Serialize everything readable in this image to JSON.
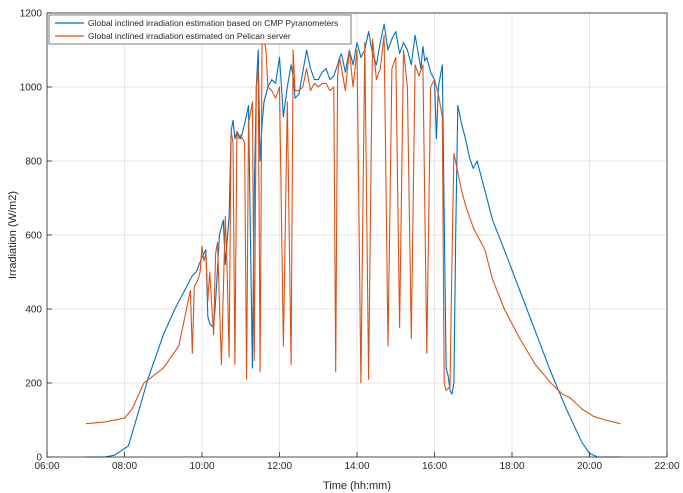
{
  "chart_data": {
    "type": "line",
    "xlabel": "Time (hh:mm)",
    "ylabel": "Irradiation (W/m2)",
    "xlim": [
      6,
      22
    ],
    "ylim": [
      0,
      1200
    ],
    "xticks": [
      6,
      8,
      10,
      12,
      14,
      16,
      18,
      20,
      22
    ],
    "xtick_labels": [
      "06:00",
      "08:00",
      "10:00",
      "12:00",
      "14:00",
      "16:00",
      "18:00",
      "20:00",
      "22:00"
    ],
    "yticks": [
      0,
      200,
      400,
      600,
      800,
      1000,
      1200
    ],
    "ytick_labels": [
      "0",
      "200",
      "400",
      "600",
      "800",
      "1000",
      "1200"
    ],
    "grid": true,
    "legend_position": "top-left",
    "series": [
      {
        "name": "Global inclined irradiation estimation based on CMP Pyranometers",
        "color": "#0072BD",
        "x": [
          7.0,
          7.5,
          7.75,
          8.1,
          8.3,
          8.6,
          9.0,
          9.3,
          9.6,
          9.75,
          9.85,
          10.0,
          10.1,
          10.15,
          10.2,
          10.3,
          10.35,
          10.45,
          10.55,
          10.6,
          10.7,
          10.75,
          10.8,
          10.85,
          10.9,
          10.95,
          11.0,
          11.1,
          11.2,
          11.3,
          11.35,
          11.4,
          11.45,
          11.5,
          11.55,
          11.6,
          11.7,
          11.8,
          11.9,
          12.0,
          12.1,
          12.2,
          12.3,
          12.35,
          12.4,
          12.5,
          12.6,
          12.7,
          12.8,
          12.9,
          13.0,
          13.1,
          13.2,
          13.3,
          13.4,
          13.5,
          13.55,
          13.6,
          13.7,
          13.8,
          13.9,
          14.0,
          14.1,
          14.2,
          14.3,
          14.4,
          14.5,
          14.6,
          14.7,
          14.8,
          14.9,
          15.0,
          15.1,
          15.2,
          15.3,
          15.4,
          15.5,
          15.6,
          15.65,
          15.7,
          15.75,
          15.8,
          15.9,
          16.0,
          16.05,
          16.1,
          16.2,
          16.3,
          16.35,
          16.4,
          16.45,
          16.5,
          16.55,
          16.6,
          16.7,
          16.8,
          16.9,
          17.0,
          17.1,
          17.3,
          17.5,
          17.8,
          18.2,
          18.6,
          19.0,
          19.4,
          19.8,
          20.0,
          20.2,
          20.4,
          20.8
        ],
        "y": [
          0,
          0,
          5,
          30,
          100,
          210,
          330,
          400,
          460,
          490,
          500,
          540,
          560,
          380,
          360,
          350,
          420,
          600,
          640,
          520,
          650,
          880,
          910,
          860,
          880,
          870,
          860,
          900,
          950,
          240,
          720,
          1000,
          1100,
          800,
          900,
          960,
          1000,
          1020,
          1010,
          1080,
          920,
          1000,
          1060,
          1030,
          970,
          980,
          1040,
          1100,
          1050,
          1020,
          1020,
          1040,
          1050,
          1020,
          1030,
          1060,
          1080,
          1090,
          1040,
          1100,
          1060,
          1120,
          1080,
          1100,
          1150,
          1090,
          1060,
          1120,
          1170,
          1100,
          1130,
          1150,
          1090,
          1120,
          1100,
          1060,
          1140,
          1080,
          1050,
          1110,
          1070,
          1080,
          1040,
          1020,
          860,
          1000,
          1060,
          240,
          220,
          180,
          170,
          200,
          620,
          950,
          900,
          860,
          810,
          780,
          800,
          720,
          640,
          560,
          450,
          340,
          230,
          130,
          40,
          10,
          0,
          0,
          0
        ]
      },
      {
        "name": "Global inclined irradiation estimated on Pelican server",
        "color": "#D95319",
        "x": [
          7.0,
          7.5,
          8.0,
          8.2,
          8.5,
          9.0,
          9.2,
          9.4,
          9.6,
          9.7,
          9.75,
          9.8,
          9.9,
          9.95,
          10.0,
          10.05,
          10.1,
          10.15,
          10.2,
          10.3,
          10.35,
          10.4,
          10.5,
          10.6,
          10.65,
          10.7,
          10.75,
          10.8,
          10.85,
          10.9,
          10.95,
          11.0,
          11.1,
          11.15,
          11.2,
          11.3,
          11.35,
          11.4,
          11.45,
          11.5,
          11.55,
          11.6,
          11.65,
          11.7,
          11.8,
          11.9,
          12.0,
          12.1,
          12.2,
          12.3,
          12.35,
          12.4,
          12.5,
          12.6,
          12.7,
          12.8,
          12.9,
          13.0,
          13.1,
          13.2,
          13.3,
          13.4,
          13.45,
          13.5,
          13.55,
          13.6,
          13.7,
          13.8,
          13.9,
          14.0,
          14.1,
          14.2,
          14.3,
          14.4,
          14.5,
          14.6,
          14.7,
          14.8,
          14.9,
          15.0,
          15.1,
          15.2,
          15.3,
          15.4,
          15.5,
          15.6,
          15.7,
          15.8,
          15.9,
          16.0,
          16.1,
          16.2,
          16.25,
          16.3,
          16.35,
          16.4,
          16.45,
          16.5,
          16.6,
          16.7,
          16.8,
          16.9,
          17.0,
          17.1,
          17.3,
          17.5,
          17.8,
          18.2,
          18.6,
          19.0,
          19.3,
          19.5,
          19.8,
          20.1,
          20.4,
          20.8
        ],
        "y": [
          90,
          95,
          105,
          130,
          200,
          240,
          270,
          300,
          400,
          450,
          280,
          460,
          480,
          500,
          570,
          530,
          550,
          420,
          500,
          330,
          550,
          580,
          250,
          650,
          500,
          270,
          880,
          850,
          250,
          880,
          860,
          870,
          850,
          210,
          900,
          960,
          260,
          1000,
          1050,
          230,
          1150,
          1130,
          1100,
          1000,
          990,
          970,
          1000,
          300,
          960,
          250,
          1100,
          990,
          990,
          1000,
          1050,
          990,
          1010,
          1000,
          1010,
          1010,
          990,
          1000,
          230,
          1030,
          1080,
          1050,
          990,
          1100,
          1000,
          1100,
          200,
          1120,
          210,
          1130,
          1020,
          1050,
          1140,
          300,
          1050,
          1080,
          350,
          1100,
          1000,
          320,
          1060,
          1030,
          1060,
          280,
          1000,
          1020,
          980,
          920,
          200,
          180,
          185,
          190,
          520,
          820,
          770,
          720,
          680,
          650,
          620,
          600,
          560,
          480,
          400,
          320,
          250,
          200,
          170,
          160,
          130,
          110,
          100,
          90
        ]
      }
    ]
  }
}
